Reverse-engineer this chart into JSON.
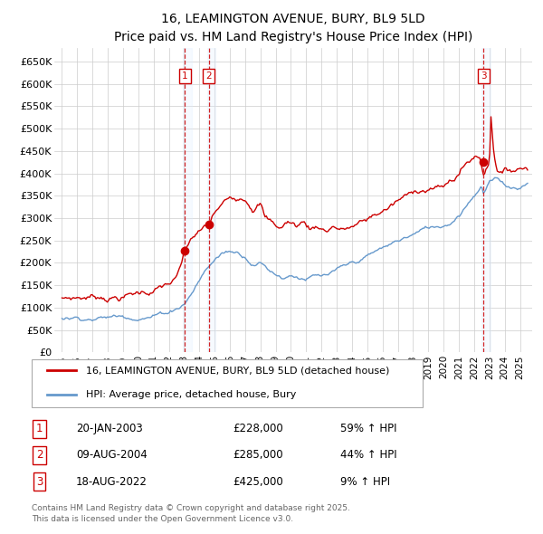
{
  "title": "16, LEAMINGTON AVENUE, BURY, BL9 5LD",
  "subtitle": "Price paid vs. HM Land Registry's House Price Index (HPI)",
  "ylim": [
    0,
    680000
  ],
  "yticks": [
    0,
    50000,
    100000,
    150000,
    200000,
    250000,
    300000,
    350000,
    400000,
    450000,
    500000,
    550000,
    600000,
    650000
  ],
  "ytick_labels": [
    "£0",
    "£50K",
    "£100K",
    "£150K",
    "£200K",
    "£250K",
    "£300K",
    "£350K",
    "£400K",
    "£450K",
    "£500K",
    "£550K",
    "£600K",
    "£650K"
  ],
  "bg_color": "#ffffff",
  "grid_color": "#cccccc",
  "red_color": "#cc0000",
  "blue_color": "#6699cc",
  "sale_highlight_color": "#ddeeff",
  "sales": [
    {
      "num": 1,
      "year": 2003.05,
      "price": 228000,
      "label": "20-JAN-2003",
      "amount": "£228,000",
      "hpi_pct": "59% ↑ HPI"
    },
    {
      "num": 2,
      "year": 2004.62,
      "price": 285000,
      "label": "09-AUG-2004",
      "amount": "£285,000",
      "hpi_pct": "44% ↑ HPI"
    },
    {
      "num": 3,
      "year": 2022.62,
      "price": 425000,
      "label": "18-AUG-2022",
      "amount": "£425,000",
      "hpi_pct": "9% ↑ HPI"
    }
  ],
  "legend_line1": "16, LEAMINGTON AVENUE, BURY, BL9 5LD (detached house)",
  "legend_line2": "HPI: Average price, detached house, Bury",
  "footer": "Contains HM Land Registry data © Crown copyright and database right 2025.\nThis data is licensed under the Open Government Licence v3.0.",
  "xstart": 1994.5,
  "xend": 2025.8
}
